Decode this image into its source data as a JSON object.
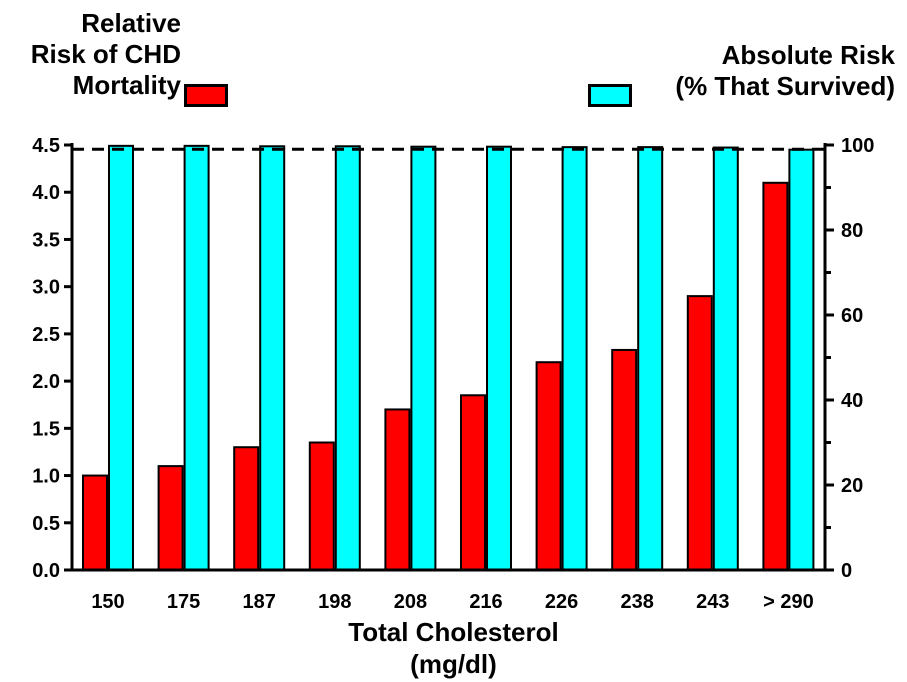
{
  "chart_data": {
    "type": "bar",
    "categories": [
      "150",
      "175",
      "187",
      "198",
      "208",
      "216",
      "226",
      "238",
      "243",
      "> 290"
    ],
    "series": [
      {
        "name": "Relative Risk of CHD Mortality",
        "axis": "left",
        "color": "#ff0000",
        "values": [
          1.0,
          1.1,
          1.3,
          1.35,
          1.7,
          1.85,
          2.2,
          2.33,
          2.9,
          4.1
        ]
      },
      {
        "name": "Absolute Risk (% That Survived)",
        "axis": "right",
        "color": "#00ffff",
        "values": [
          99.8,
          99.8,
          99.7,
          99.7,
          99.6,
          99.6,
          99.5,
          99.5,
          99.4,
          98.9
        ]
      }
    ],
    "left_axis": {
      "title_lines": [
        "Relative",
        "Risk of CHD",
        "Mortality"
      ],
      "ylim": [
        0,
        4.5
      ],
      "ticks": [
        "0.0",
        "0.5",
        "1.0",
        "1.5",
        "2.0",
        "2.5",
        "3.0",
        "3.5",
        "4.0",
        "4.5"
      ]
    },
    "right_axis": {
      "title_lines": [
        "Absolute Risk",
        "(% That Survived)"
      ],
      "ylim": [
        0,
        100
      ],
      "ticks": [
        "0",
        "20",
        "40",
        "60",
        "80",
        "100"
      ]
    },
    "x_axis": {
      "title_lines": [
        "Total Cholesterol",
        "(mg/dl)"
      ]
    },
    "reference_line": {
      "axis": "right",
      "value": 99,
      "style": "dashed"
    },
    "grid": false,
    "legend": "top-left and top-right"
  }
}
